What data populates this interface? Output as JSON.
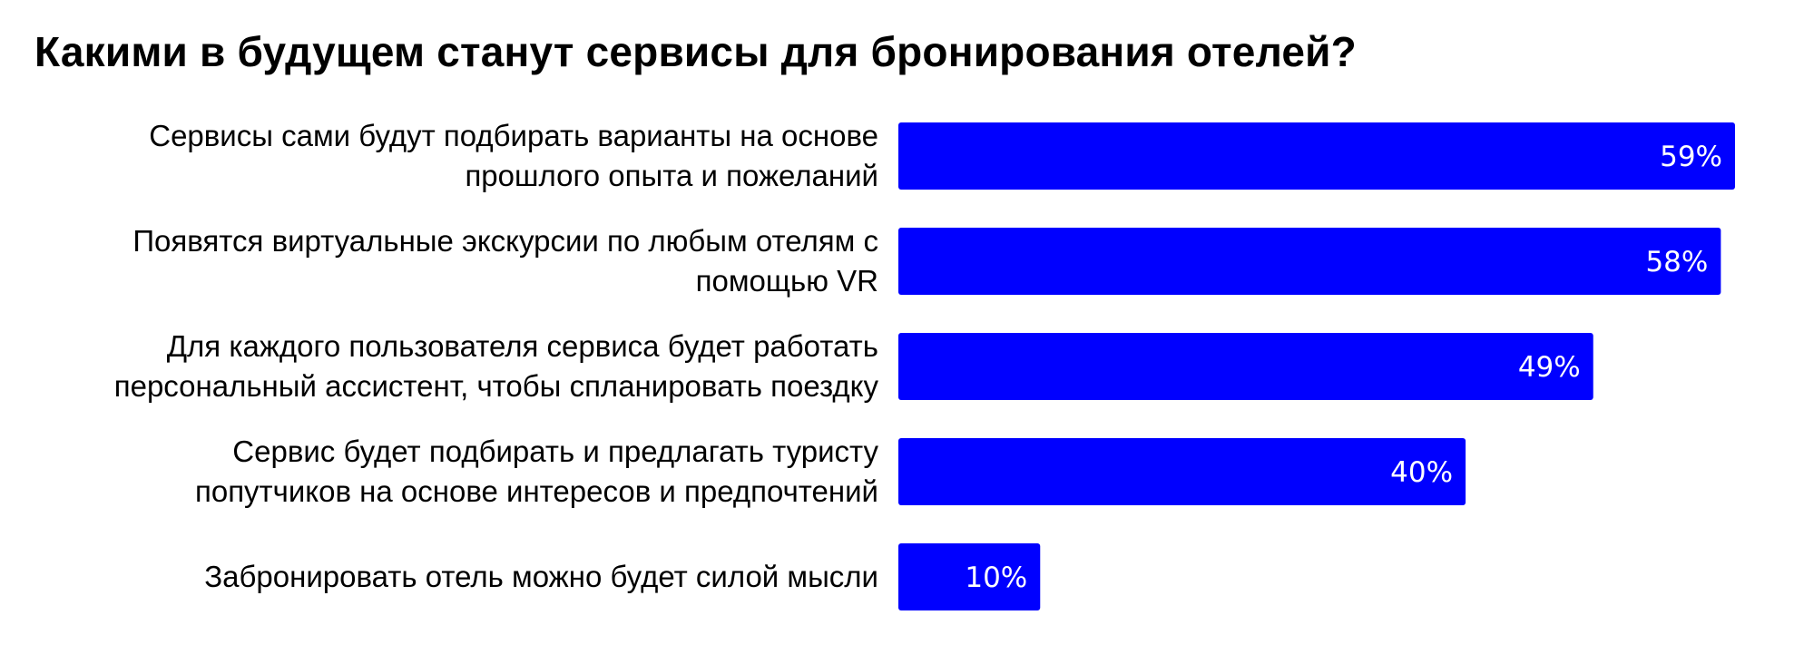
{
  "chart_data": {
    "type": "bar",
    "orientation": "horizontal",
    "title": "Какими в будущем станут сервисы для бронирования отелей?",
    "categories": [
      [
        "Сервисы сами будут подбирать варианты на основе",
        "прошлого опыта и пожеланий"
      ],
      [
        "Появятся виртуальные экскурсии по любым отелям с",
        "помощью VR"
      ],
      [
        "Для каждого пользователя сервиса будет работать",
        "персональный ассистент, чтобы спланировать поездку"
      ],
      [
        "Сервис будет подбирать и предлагать туристу",
        "попутчиков на основе интересов и предпочтений"
      ],
      [
        "Забронировать отель можно будет силой мысли"
      ]
    ],
    "values": [
      59,
      58,
      49,
      40,
      10
    ],
    "value_labels": [
      "59%",
      "58%",
      "49%",
      "40%",
      "10%"
    ],
    "xlim": [
      0,
      59
    ],
    "grid": false,
    "bar_color": "#0000ff",
    "value_label_color": "#ffffff"
  }
}
